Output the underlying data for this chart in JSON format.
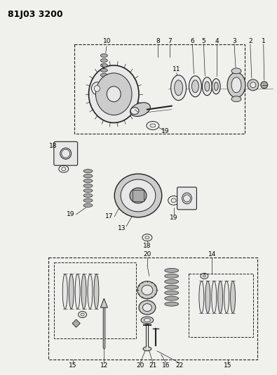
{
  "title": "81J03 3200",
  "bg_color": "#f0f0ec",
  "fig_width": 3.95,
  "fig_height": 5.33,
  "dpi": 100,
  "line_color": "#222222",
  "part_fill": "#e8e8e8",
  "part_dark": "#aaaaaa",
  "part_mid": "#cccccc"
}
